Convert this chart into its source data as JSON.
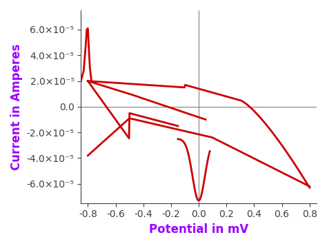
{
  "title": "",
  "xlabel": "Potential in mV",
  "ylabel": "Current in Amperes",
  "xlabel_color": "#9B00FF",
  "ylabel_color": "#9B00FF",
  "line_color": "#CC0000",
  "line_width": 2.0,
  "xlim": [
    -0.85,
    0.85
  ],
  "ylim": [
    -7.5e-05,
    7.5e-05
  ],
  "xticks": [
    -0.8,
    -0.6,
    -0.4,
    -0.2,
    0.0,
    0.2,
    0.4,
    0.6,
    0.8
  ],
  "yticks": [
    -6e-05,
    -4e-05,
    -2e-05,
    0.0,
    2e-05,
    4e-05,
    6e-05
  ],
  "ytick_labels": [
    "-6.0x10⁻⁵",
    "-4.0x10⁻⁵",
    "-2.0x10⁻⁵",
    "0.0",
    "2.0x10⁻⁵",
    "4.0x10⁻⁵",
    "6.0x10⁻⁵"
  ],
  "background_color": "#ffffff",
  "axline_color": "#808080",
  "label_fontsize": 12,
  "tick_fontsize": 10
}
